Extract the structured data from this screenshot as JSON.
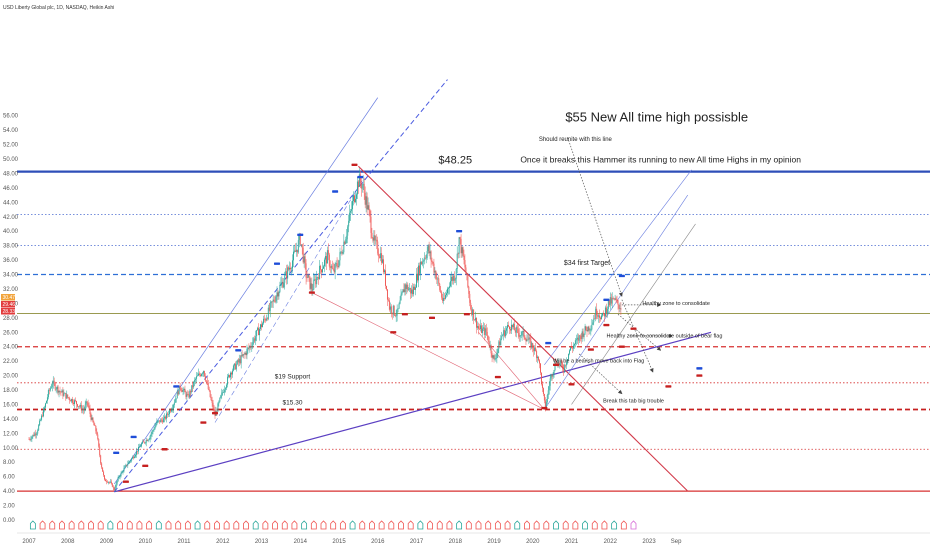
{
  "symbol_header": "Liberty Global plc, 1D, NASDAQ, Heikin Ashi",
  "currency": "USD",
  "chart_data": {
    "type": "candlestick",
    "ylim": [
      0,
      58
    ],
    "yticks": [
      "56.00",
      "54.00",
      "52.00",
      "50.00",
      "48.00",
      "46.00",
      "44.00",
      "42.00",
      "40.00",
      "38.00",
      "36.00",
      "34.00",
      "32.00",
      "30.00",
      "28.00",
      "26.00",
      "24.00",
      "22.00",
      "20.00",
      "18.00",
      "16.00",
      "14.00",
      "12.00",
      "10.00",
      "8.00",
      "6.00",
      "4.00",
      "2.00",
      "0.00"
    ],
    "xticks": [
      "2007",
      "2008",
      "2009",
      "2010",
      "2011",
      "2012",
      "2013",
      "2014",
      "2015",
      "2016",
      "2017",
      "2018",
      "2019",
      "2020",
      "2021",
      "2022",
      "2023",
      "Sep"
    ],
    "price_labels": [
      {
        "text": "30.47",
        "color": "#f2a33a"
      },
      {
        "text": "29.46",
        "color": "#e23c3c"
      },
      {
        "text": "28.33",
        "color": "#e23c3c"
      }
    ],
    "price_path": [
      [
        2007.0,
        11.2
      ],
      [
        2007.2,
        12.2
      ],
      [
        2007.4,
        15.5
      ],
      [
        2007.5,
        17.6
      ],
      [
        2007.6,
        19.0
      ],
      [
        2007.8,
        17.8
      ],
      [
        2008.0,
        17.0
      ],
      [
        2008.2,
        16.3
      ],
      [
        2008.4,
        15.2
      ],
      [
        2008.5,
        16.3
      ],
      [
        2008.6,
        14.2
      ],
      [
        2008.75,
        12.0
      ],
      [
        2008.85,
        8.0
      ],
      [
        2008.95,
        5.5
      ],
      [
        2009.1,
        5.2
      ],
      [
        2009.2,
        4.2
      ],
      [
        2009.3,
        5.8
      ],
      [
        2009.5,
        7.5
      ],
      [
        2009.7,
        8.8
      ],
      [
        2009.9,
        10.5
      ],
      [
        2010.1,
        11.4
      ],
      [
        2010.3,
        13.5
      ],
      [
        2010.5,
        14.0
      ],
      [
        2010.7,
        15.8
      ],
      [
        2010.9,
        18.5
      ],
      [
        2011.1,
        17.0
      ],
      [
        2011.3,
        19.5
      ],
      [
        2011.5,
        20.8
      ],
      [
        2011.7,
        16.5
      ],
      [
        2011.8,
        14.5
      ],
      [
        2011.95,
        17.0
      ],
      [
        2012.2,
        20.5
      ],
      [
        2012.5,
        22.5
      ],
      [
        2012.7,
        24.0
      ],
      [
        2012.9,
        26.0
      ],
      [
        2013.2,
        29.0
      ],
      [
        2013.4,
        31.5
      ],
      [
        2013.6,
        33.5
      ],
      [
        2013.8,
        36.0
      ],
      [
        2014.0,
        39.0
      ],
      [
        2014.15,
        34.0
      ],
      [
        2014.3,
        32.0
      ],
      [
        2014.5,
        34.5
      ],
      [
        2014.7,
        36.5
      ],
      [
        2014.85,
        34.2
      ],
      [
        2015.0,
        36.0
      ],
      [
        2015.2,
        40.0
      ],
      [
        2015.4,
        45.0
      ],
      [
        2015.5,
        47.0
      ],
      [
        2015.6,
        46.5
      ],
      [
        2015.75,
        43.0
      ],
      [
        2015.9,
        38.5
      ],
      [
        2016.1,
        36.5
      ],
      [
        2016.2,
        33.0
      ],
      [
        2016.3,
        29.5
      ],
      [
        2016.5,
        28.5
      ],
      [
        2016.7,
        32.5
      ],
      [
        2016.9,
        31.5
      ],
      [
        2017.1,
        35.5
      ],
      [
        2017.3,
        37.5
      ],
      [
        2017.5,
        34.0
      ],
      [
        2017.7,
        30.0
      ],
      [
        2017.85,
        33.0
      ],
      [
        2018.0,
        34.0
      ],
      [
        2018.1,
        39.0
      ],
      [
        2018.25,
        35.0
      ],
      [
        2018.4,
        29.5
      ],
      [
        2018.6,
        26.5
      ],
      [
        2018.8,
        26.0
      ],
      [
        2019.0,
        22.0
      ],
      [
        2019.2,
        25.5
      ],
      [
        2019.4,
        27.0
      ],
      [
        2019.6,
        26.0
      ],
      [
        2019.8,
        25.5
      ],
      [
        2020.0,
        24.0
      ],
      [
        2020.15,
        22.5
      ],
      [
        2020.25,
        18.0
      ],
      [
        2020.32,
        15.5
      ],
      [
        2020.45,
        19.5
      ],
      [
        2020.6,
        22.0
      ],
      [
        2020.8,
        21.0
      ],
      [
        2020.95,
        23.5
      ],
      [
        2021.1,
        24.5
      ],
      [
        2021.3,
        26.0
      ],
      [
        2021.5,
        27.0
      ],
      [
        2021.65,
        29.0
      ],
      [
        2021.8,
        28.0
      ],
      [
        2021.95,
        30.0
      ],
      [
        2022.1,
        30.4
      ],
      [
        2022.2,
        29.8
      ],
      [
        2022.3,
        29.5
      ]
    ],
    "horizontal_levels": [
      {
        "y": 48.25,
        "color": "#2e4fb8",
        "style": "solid",
        "width": 2.2
      },
      {
        "y": 42.3,
        "color": "#4a6bd0",
        "style": "dotted",
        "width": 0.8
      },
      {
        "y": 38.0,
        "color": "#4a6bd0",
        "style": "dotted",
        "width": 0.8
      },
      {
        "y": 34.0,
        "color": "#2e6fd6",
        "style": "dashed",
        "width": 1.3
      },
      {
        "y": 28.6,
        "color": "#9a9a50",
        "style": "solid",
        "width": 1.0
      },
      {
        "y": 24.0,
        "color": "#d73030",
        "style": "dashed",
        "width": 1.3
      },
      {
        "y": 19.0,
        "color": "#d73030",
        "style": "dotted",
        "width": 0.8
      },
      {
        "y": 15.3,
        "color": "#c62020",
        "style": "dashed",
        "width": 1.8
      },
      {
        "y": 9.8,
        "color": "#d73030",
        "style": "dotted",
        "width": 0.8
      },
      {
        "y": 4.0,
        "color": "#d73030",
        "style": "solid",
        "width": 1.2
      }
    ],
    "trend_lines": [
      {
        "from": [
          2009.2,
          3.9
        ],
        "to": [
          2024.6,
          26.0
        ],
        "color": "#5b3fc2",
        "width": 1.2,
        "style": "solid"
      },
      {
        "from": [
          2015.5,
          49.0
        ],
        "to": [
          2024.0,
          4.0
        ],
        "color": "#d23a4a",
        "width": 1.1,
        "style": "solid"
      },
      {
        "from": [
          2009.2,
          3.9
        ],
        "to": [
          2015.8,
          48.0
        ],
        "color": "#4a5be0",
        "width": 1.0,
        "style": "dashed"
      },
      {
        "from": [
          2015.8,
          48.0
        ],
        "to": [
          2017.8,
          61.0
        ],
        "color": "#4a5be0",
        "width": 1.0,
        "style": "dashed"
      },
      {
        "from": [
          2009.2,
          5.0
        ],
        "to": [
          2016.0,
          58.5
        ],
        "color": "#6a7ee0",
        "width": 0.7,
        "style": "solid"
      },
      {
        "from": [
          2011.8,
          13.5
        ],
        "to": [
          2015.6,
          47.0
        ],
        "color": "#6a7ee0",
        "width": 0.6,
        "style": "dashed"
      },
      {
        "from": [
          2014.3,
          31.5
        ],
        "to": [
          2020.3,
          15.3
        ],
        "color": "#e06070",
        "width": 0.6,
        "style": "solid"
      },
      {
        "from": [
          2018.6,
          26.0
        ],
        "to": [
          2020.3,
          15.3
        ],
        "color": "#e06070",
        "width": 0.6,
        "style": "solid"
      },
      {
        "from": [
          2020.3,
          15.3
        ],
        "to": [
          2024.0,
          45.0
        ],
        "color": "#6a7ee0",
        "width": 0.6,
        "style": "solid"
      },
      {
        "from": [
          2020.3,
          21.5
        ],
        "to": [
          2024.1,
          48.5
        ],
        "color": "#6a7ee0",
        "width": 0.6,
        "style": "solid"
      },
      {
        "from": [
          2021.0,
          16.0
        ],
        "to": [
          2024.2,
          41.0
        ],
        "color": "#8a8a8a",
        "width": 0.6,
        "style": "solid"
      }
    ],
    "dotted_arrows": [
      {
        "from": [
          2020.9,
          53.0
        ],
        "to": [
          2022.3,
          31.0
        ]
      },
      {
        "from": [
          2022.2,
          28.5
        ],
        "to": [
          2023.3,
          23.5
        ]
      },
      {
        "from": [
          2021.2,
          23.0
        ],
        "to": [
          2022.3,
          17.5
        ]
      },
      {
        "from": [
          2022.3,
          30.5
        ],
        "to": [
          2023.1,
          20.5
        ]
      },
      {
        "from": [
          2022.3,
          29.8
        ],
        "to": [
          2023.3,
          29.8
        ]
      },
      {
        "from": [
          2022.5,
          25.5
        ],
        "to": [
          2023.6,
          25.5
        ]
      }
    ],
    "markers_blue": [
      [
        2009.25,
        9.3
      ],
      [
        2009.7,
        11.5
      ],
      [
        2010.8,
        18.5
      ],
      [
        2012.4,
        23.5
      ],
      [
        2013.4,
        35.5
      ],
      [
        2014.0,
        39.5
      ],
      [
        2014.9,
        45.5
      ],
      [
        2015.55,
        47.5
      ],
      [
        2018.1,
        40.0
      ],
      [
        2020.4,
        24.5
      ],
      [
        2021.9,
        30.5
      ],
      [
        2022.3,
        33.8
      ],
      [
        2024.3,
        21.0
      ]
    ],
    "markers_red": [
      [
        2009.5,
        5.3
      ],
      [
        2010.0,
        7.5
      ],
      [
        2010.5,
        9.8
      ],
      [
        2011.5,
        13.5
      ],
      [
        2011.8,
        14.8
      ],
      [
        2014.3,
        31.5
      ],
      [
        2015.4,
        49.2
      ],
      [
        2016.4,
        26.0
      ],
      [
        2016.7,
        28.5
      ],
      [
        2017.4,
        28.0
      ],
      [
        2018.3,
        28.5
      ],
      [
        2019.1,
        19.8
      ],
      [
        2020.3,
        15.5
      ],
      [
        2020.6,
        21.5
      ],
      [
        2021.0,
        18.8
      ],
      [
        2021.5,
        23.6
      ],
      [
        2021.9,
        27.0
      ],
      [
        2022.3,
        24.0
      ],
      [
        2022.6,
        26.5
      ],
      [
        2023.5,
        18.5
      ],
      [
        2024.3,
        20.0
      ]
    ],
    "annotations": [
      {
        "text": "$55 New All time high possisble",
        "x": 2023.2,
        "y": 55.2,
        "size": 13
      },
      {
        "text": "Should reunite with this line",
        "x": 2021.1,
        "y": 52.5,
        "size": 6
      },
      {
        "text": "Once it breaks this Hammer  its running to new All time Highs in my opinion",
        "x": 2023.3,
        "y": 49.5,
        "size": 8.5
      },
      {
        "text": "$48.25",
        "x": 2018.0,
        "y": 49.4,
        "size": 11
      },
      {
        "text": "$34 first Target",
        "x": 2021.4,
        "y": 35.3,
        "size": 7
      },
      {
        "text": "Healthy zone to consolidate",
        "x": 2023.7,
        "y": 29.8,
        "size": 5.5
      },
      {
        "text": "Healthy zone to consolidate outside of bear flag",
        "x": 2023.4,
        "y": 25.3,
        "size": 5.5
      },
      {
        "text": "Will be a bearish move back into Flag",
        "x": 2021.7,
        "y": 21.8,
        "size": 5.5
      },
      {
        "text": "$19 Support",
        "x": 2013.8,
        "y": 19.6,
        "size": 6.5
      },
      {
        "text": "$15.30",
        "x": 2013.8,
        "y": 16.0,
        "size": 6.5
      },
      {
        "text": "Break this tab big trouble",
        "x": 2022.6,
        "y": 16.3,
        "size": 5.5
      }
    ],
    "event_icons": [
      {
        "x": 2007.1,
        "c": "g"
      },
      {
        "x": 2007.35,
        "c": "r"
      },
      {
        "x": 2007.6,
        "c": "r"
      },
      {
        "x": 2007.85,
        "c": "r"
      },
      {
        "x": 2008.1,
        "c": "r"
      },
      {
        "x": 2008.35,
        "c": "r"
      },
      {
        "x": 2008.6,
        "c": "r"
      },
      {
        "x": 2008.85,
        "c": "r"
      },
      {
        "x": 2009.1,
        "c": "g"
      },
      {
        "x": 2009.35,
        "c": "r"
      },
      {
        "x": 2009.6,
        "c": "r"
      },
      {
        "x": 2009.85,
        "c": "r"
      },
      {
        "x": 2010.1,
        "c": "r"
      },
      {
        "x": 2010.35,
        "c": "g"
      },
      {
        "x": 2010.6,
        "c": "r"
      },
      {
        "x": 2010.85,
        "c": "r"
      },
      {
        "x": 2011.1,
        "c": "r"
      },
      {
        "x": 2011.35,
        "c": "g"
      },
      {
        "x": 2011.6,
        "c": "r"
      },
      {
        "x": 2011.85,
        "c": "r"
      },
      {
        "x": 2012.1,
        "c": "r"
      },
      {
        "x": 2012.35,
        "c": "r"
      },
      {
        "x": 2012.6,
        "c": "r"
      },
      {
        "x": 2012.85,
        "c": "g"
      },
      {
        "x": 2013.1,
        "c": "r"
      },
      {
        "x": 2013.35,
        "c": "r"
      },
      {
        "x": 2013.6,
        "c": "r"
      },
      {
        "x": 2013.85,
        "c": "r"
      },
      {
        "x": 2014.1,
        "c": "g"
      },
      {
        "x": 2014.35,
        "c": "r"
      },
      {
        "x": 2014.6,
        "c": "r"
      },
      {
        "x": 2014.85,
        "c": "r"
      },
      {
        "x": 2015.1,
        "c": "r"
      },
      {
        "x": 2015.35,
        "c": "g"
      },
      {
        "x": 2015.6,
        "c": "r"
      },
      {
        "x": 2015.85,
        "c": "r"
      },
      {
        "x": 2016.1,
        "c": "r"
      },
      {
        "x": 2016.35,
        "c": "r"
      },
      {
        "x": 2016.6,
        "c": "r"
      },
      {
        "x": 2016.85,
        "c": "r"
      },
      {
        "x": 2017.1,
        "c": "g"
      },
      {
        "x": 2017.35,
        "c": "r"
      },
      {
        "x": 2017.6,
        "c": "r"
      },
      {
        "x": 2017.85,
        "c": "r"
      },
      {
        "x": 2018.1,
        "c": "g"
      },
      {
        "x": 2018.35,
        "c": "r"
      },
      {
        "x": 2018.6,
        "c": "r"
      },
      {
        "x": 2018.85,
        "c": "r"
      },
      {
        "x": 2019.1,
        "c": "r"
      },
      {
        "x": 2019.35,
        "c": "r"
      },
      {
        "x": 2019.6,
        "c": "g"
      },
      {
        "x": 2019.85,
        "c": "r"
      },
      {
        "x": 2020.1,
        "c": "r"
      },
      {
        "x": 2020.35,
        "c": "r"
      },
      {
        "x": 2020.6,
        "c": "g"
      },
      {
        "x": 2020.85,
        "c": "r"
      },
      {
        "x": 2021.1,
        "c": "r"
      },
      {
        "x": 2021.35,
        "c": "g"
      },
      {
        "x": 2021.6,
        "c": "r"
      },
      {
        "x": 2021.85,
        "c": "r"
      },
      {
        "x": 2022.1,
        "c": "g"
      },
      {
        "x": 2022.35,
        "c": "r"
      },
      {
        "x": 2022.6,
        "c": "p"
      }
    ]
  }
}
